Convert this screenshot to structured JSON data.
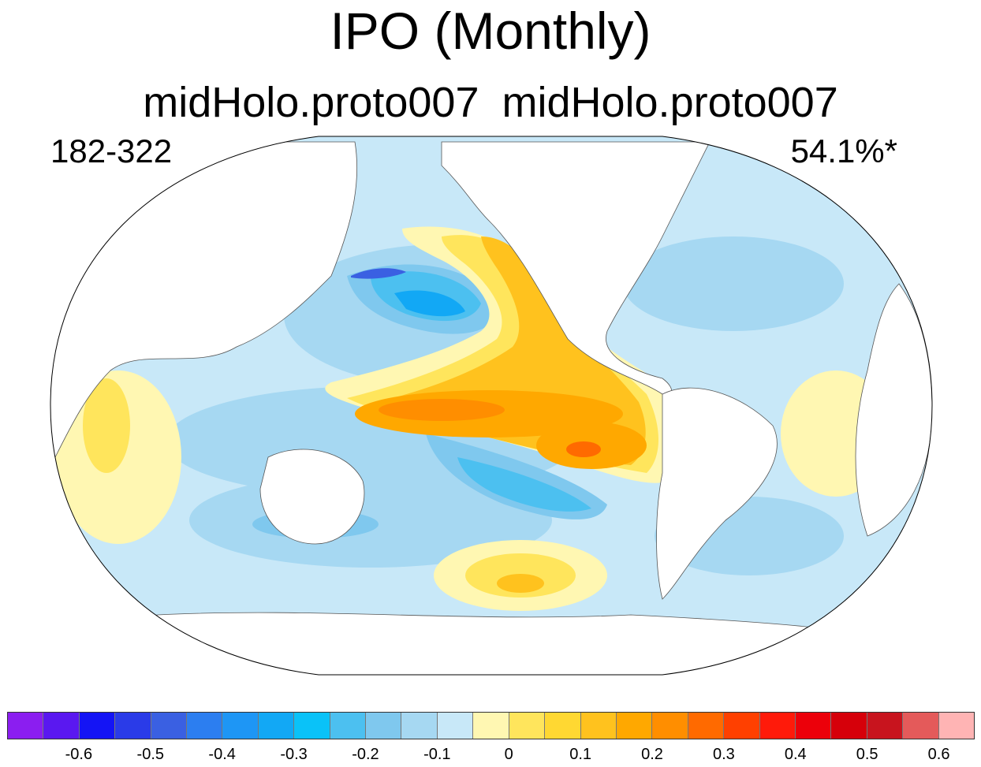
{
  "title": "IPO (Monthly)",
  "subtitle": "midHolo.proto007  midHolo.proto007",
  "left_label": "182-322",
  "right_label": "54.1%*",
  "colorbar": {
    "colors": [
      "#8b1ef0",
      "#5a18f0",
      "#1414f5",
      "#2a3be8",
      "#3a60e2",
      "#2c7ef0",
      "#1e96f5",
      "#12a8f5",
      "#0ac2f8",
      "#4cc0f0",
      "#7fc8ee",
      "#a6d8f2",
      "#c8e8f8",
      "#fff7b2",
      "#ffe55c",
      "#ffd832",
      "#ffc21e",
      "#ffa800",
      "#ff8e00",
      "#ff6a00",
      "#ff4000",
      "#ff1a0a",
      "#ec000a",
      "#d6000a",
      "#c8141e",
      "#e45a5a",
      "#ffb4b4"
    ],
    "tick_labels": [
      "-0.6",
      "-0.5",
      "-0.4",
      "-0.3",
      "-0.2",
      "-0.1",
      "0",
      "0.1",
      "0.2",
      "0.3",
      "0.4",
      "0.5",
      "0.6"
    ]
  },
  "map_colors": {
    "ocean_base": "#c8e8f8",
    "land": "#ffffff",
    "outline": "#000000"
  }
}
